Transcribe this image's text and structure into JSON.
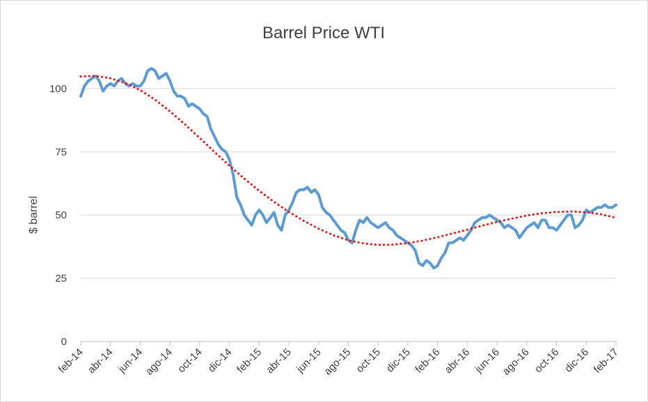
{
  "chart_data": {
    "type": "line",
    "title": "Barrel Price WTI",
    "xlabel": "",
    "ylabel": "$ barrel",
    "ylim": [
      0,
      110
    ],
    "yticks": [
      0,
      25,
      50,
      75,
      100
    ],
    "grid": true,
    "legend": "none",
    "x_tick_labels": [
      "feb-14",
      "abr-14",
      "jun-14",
      "ago-14",
      "oct-14",
      "dic-14",
      "feb-15",
      "abr-15",
      "jun-15",
      "ago-15",
      "oct-15",
      "dic-15",
      "feb-16",
      "abr-16",
      "jun-16",
      "ago-16",
      "oct-16",
      "dic-16",
      "feb-17"
    ],
    "x_unit": "months since feb-14",
    "series": [
      {
        "color": "#5b9bd5",
        "style": "solid",
        "x": [
          0,
          0.25,
          0.5,
          0.75,
          1,
          1.25,
          1.5,
          1.75,
          2,
          2.25,
          2.5,
          2.75,
          3,
          3.25,
          3.5,
          3.75,
          4,
          4.25,
          4.5,
          4.75,
          5,
          5.25,
          5.5,
          5.75,
          6,
          6.25,
          6.5,
          6.75,
          7,
          7.25,
          7.5,
          7.75,
          8,
          8.25,
          8.5,
          8.75,
          9,
          9.25,
          9.5,
          9.75,
          10,
          10.25,
          10.5,
          10.75,
          11,
          11.25,
          11.5,
          11.75,
          12,
          12.25,
          12.5,
          12.75,
          13,
          13.25,
          13.5,
          13.75,
          14,
          14.25,
          14.5,
          14.75,
          15,
          15.25,
          15.5,
          15.75,
          16,
          16.25,
          16.5,
          16.75,
          17,
          17.25,
          17.5,
          17.75,
          18,
          18.25,
          18.5,
          18.75,
          19,
          19.25,
          19.5,
          19.75,
          20,
          20.25,
          20.5,
          20.75,
          21,
          21.25,
          21.5,
          21.75,
          22,
          22.25,
          22.5,
          22.75,
          23,
          23.25,
          23.5,
          23.75,
          24,
          24.25,
          24.5,
          24.75,
          25,
          25.25,
          25.5,
          25.75,
          26,
          26.25,
          26.5,
          26.75,
          27,
          27.25,
          27.5,
          27.75,
          28,
          28.25,
          28.5,
          28.75,
          29,
          29.25,
          29.5,
          29.75,
          30,
          30.25,
          30.5,
          30.75,
          31,
          31.25,
          31.5,
          31.75,
          32,
          32.25,
          32.5,
          32.75,
          33,
          33.25,
          33.5,
          33.75,
          34,
          34.25,
          34.5,
          34.75,
          35,
          35.25,
          35.5,
          35.75,
          36
        ],
        "y": [
          97,
          101,
          103,
          104,
          105,
          103,
          99,
          101,
          102,
          101,
          103,
          104,
          102,
          101,
          102,
          101,
          101,
          103,
          107,
          108,
          107,
          104,
          105,
          106,
          103,
          99,
          97,
          97,
          96,
          93,
          94,
          93,
          92,
          90,
          89,
          84,
          81,
          78,
          76,
          75,
          72,
          66,
          57,
          54,
          50,
          48,
          46,
          50,
          52,
          50,
          47,
          49,
          51,
          46,
          44,
          50,
          52,
          55,
          59,
          60,
          60,
          61,
          59,
          60,
          58,
          53,
          51,
          50,
          48,
          46,
          44,
          43,
          40,
          39,
          44,
          48,
          47,
          49,
          47,
          46,
          45,
          46,
          47,
          45,
          44,
          42,
          41,
          40,
          39,
          38,
          36,
          31,
          30,
          32,
          31,
          29,
          30,
          33,
          35,
          39,
          39,
          40,
          41,
          40,
          42,
          44,
          47,
          48,
          49,
          49,
          50,
          49,
          48,
          47,
          45,
          46,
          45,
          44,
          41,
          43,
          45,
          46,
          47,
          45,
          48,
          48,
          45,
          45,
          44,
          46,
          48,
          50,
          50,
          45,
          46,
          48,
          52,
          51,
          52,
          53,
          53,
          54,
          53,
          53,
          54
        ],
        "data_labels": []
      },
      {
        "color": "#ff0000",
        "style": "dotted",
        "x": [
          0,
          1,
          2,
          3,
          4,
          5,
          6,
          7,
          8,
          9,
          10,
          11,
          12,
          13,
          14,
          15,
          16,
          17,
          18,
          19,
          20,
          21,
          22,
          23,
          24,
          25,
          26,
          27,
          28,
          29,
          30,
          31,
          32,
          33,
          34,
          35,
          36
        ],
        "y": [
          104.8,
          105.0,
          104.1,
          102.2,
          99.4,
          95.6,
          91.0,
          85.9,
          80.5,
          74.9,
          69.5,
          64.4,
          59.6,
          55.2,
          51.2,
          47.7,
          44.6,
          42.0,
          40.0,
          38.8,
          38.2,
          38.3,
          38.9,
          39.9,
          41.2,
          42.7,
          44.2,
          45.8,
          47.3,
          48.6,
          49.8,
          50.7,
          51.2,
          51.4,
          51.1,
          50.3,
          48.9
        ]
      }
    ]
  }
}
